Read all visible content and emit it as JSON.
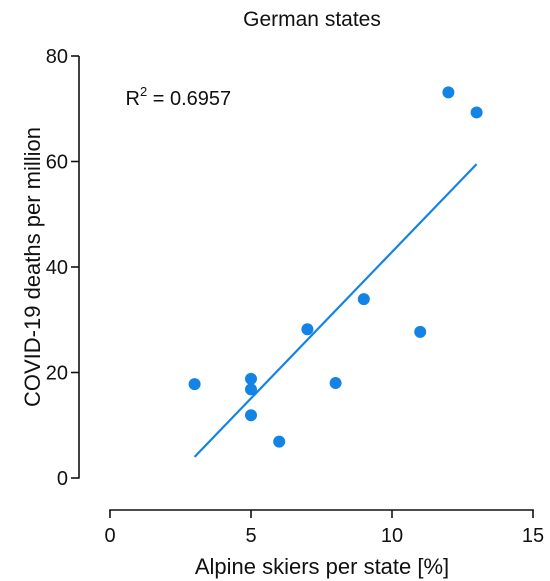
{
  "chart_data": {
    "type": "scatter",
    "title": "German states",
    "xlabel": "Alpine skiers per state [%]",
    "ylabel": "COVID-19 deaths per million",
    "xlim": [
      0,
      15
    ],
    "ylim": [
      0,
      80
    ],
    "xticks": [
      0,
      5,
      10,
      15
    ],
    "yticks": [
      0,
      20,
      40,
      60,
      80
    ],
    "grid": false,
    "legend": "none",
    "colors": {
      "points": "#1384e6",
      "fit_line": "#1384e6",
      "axes": "#111111"
    },
    "series": [
      {
        "points": [
          {
            "x": 3,
            "y": 17.8
          },
          {
            "x": 5,
            "y": 18.8
          },
          {
            "x": 5,
            "y": 16.8
          },
          {
            "x": 5,
            "y": 11.9
          },
          {
            "x": 6,
            "y": 6.9
          },
          {
            "x": 7,
            "y": 28.2
          },
          {
            "x": 8,
            "y": 18.0
          },
          {
            "x": 9,
            "y": 33.9
          },
          {
            "x": 11,
            "y": 27.7
          },
          {
            "x": 12,
            "y": 73.1
          },
          {
            "x": 13,
            "y": 69.3
          }
        ]
      }
    ],
    "fit_line": {
      "x": [
        3,
        13
      ],
      "y": [
        4.0,
        59.5
      ]
    },
    "annotations": [
      {
        "text": "R",
        "superscript": "2",
        "suffix": " = 0.6957",
        "x": 0.55,
        "y": 72
      }
    ]
  }
}
